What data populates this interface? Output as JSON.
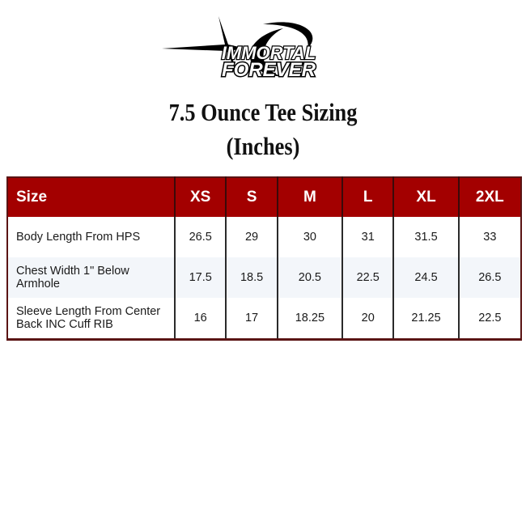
{
  "logo": {
    "line1": "IMMORTAL",
    "line2": "FOREVER"
  },
  "title": {
    "line1": "7.5 Ounce Tee Sizing",
    "line2": "(Inches)"
  },
  "table": {
    "headers": [
      "Size",
      "XS",
      "S",
      "M",
      "L",
      "XL",
      "2XL"
    ],
    "rows": [
      {
        "label": "Body Length From HPS",
        "values": [
          "26.5",
          "29",
          "30",
          "31",
          "31.5",
          "33"
        ]
      },
      {
        "label": "Chest Width 1\" Below Armhole",
        "values": [
          "17.5",
          "18.5",
          "20.5",
          "22.5",
          "24.5",
          "26.5"
        ]
      },
      {
        "label": "Sleeve Length From Center Back INC Cuff RIB",
        "values": [
          "16",
          "17",
          "18.25",
          "20",
          "21.25",
          "22.5"
        ]
      }
    ]
  },
  "colors": {
    "header_bg": "#a30000",
    "alt_row": "#f3f6fa"
  }
}
